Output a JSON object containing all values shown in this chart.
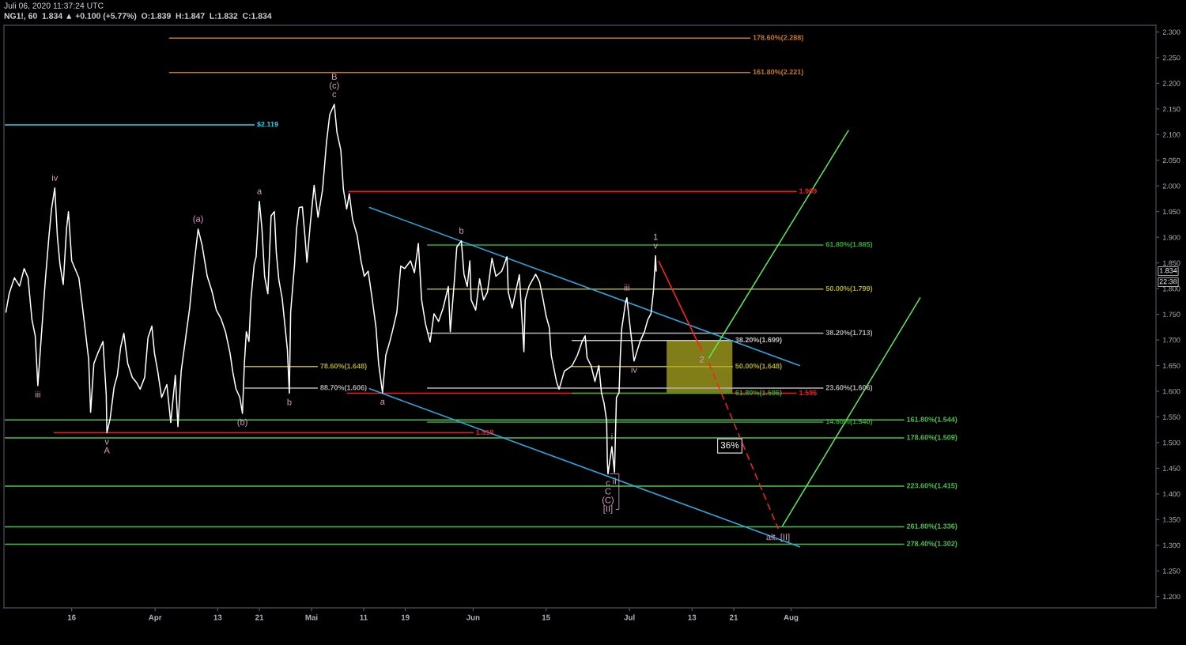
{
  "chart_data": {
    "type": "line",
    "title": "NG1!, 60  1.834 ▲ +0.100 (+5.77%)  O:1.839  H:1.847  L:1.832  C:1.834",
    "subtitle": "Juli 06, 2020 11:37:24 UTC",
    "xlim": [
      "2020-03-03",
      "2020-10-10"
    ],
    "ylim": [
      1.178,
      2.313
    ],
    "xticks": [
      {
        "value": "2020-03-16",
        "label": "16"
      },
      {
        "value": "2020-04-01",
        "label": "Apr"
      },
      {
        "value": "2020-04-13",
        "label": "13"
      },
      {
        "value": "2020-04-21",
        "label": "21"
      },
      {
        "value": "2020-05-01",
        "label": "Mai"
      },
      {
        "value": "2020-05-11",
        "label": "11"
      },
      {
        "value": "2020-05-19",
        "label": "19"
      },
      {
        "value": "2020-06-01",
        "label": "Jun"
      },
      {
        "value": "2020-06-15",
        "label": "15"
      },
      {
        "value": "2020-07-01",
        "label": "Jul"
      },
      {
        "value": "2020-07-13",
        "label": "13"
      },
      {
        "value": "2020-07-21",
        "label": "21"
      },
      {
        "value": "2020-08-01",
        "label": "Aug"
      }
    ],
    "yticks": [
      {
        "value": 1.2,
        "label": "1.200"
      },
      {
        "value": 1.25,
        "label": "1.250"
      },
      {
        "value": 1.3,
        "label": "1.300"
      },
      {
        "value": 1.35,
        "label": "1.350"
      },
      {
        "value": 1.4,
        "label": "1.400"
      },
      {
        "value": 1.45,
        "label": "1.450"
      },
      {
        "value": 1.5,
        "label": "1.500"
      },
      {
        "value": 1.55,
        "label": "1.550"
      },
      {
        "value": 1.6,
        "label": "1.600"
      },
      {
        "value": 1.65,
        "label": "1.650"
      },
      {
        "value": 1.7,
        "label": "1.700"
      },
      {
        "value": 1.75,
        "label": "1.750"
      },
      {
        "value": 1.8,
        "label": "1.800"
      },
      {
        "value": 1.85,
        "label": "1.850"
      },
      {
        "value": 1.9,
        "label": "1.900"
      },
      {
        "value": 1.95,
        "label": "1.950"
      },
      {
        "value": 2.0,
        "label": "2.000"
      },
      {
        "value": 2.05,
        "label": "2.050"
      },
      {
        "value": 2.1,
        "label": "2.100"
      },
      {
        "value": 2.15,
        "label": "2.150"
      },
      {
        "value": 2.2,
        "label": "2.200"
      },
      {
        "value": 2.25,
        "label": "2.250"
      },
      {
        "value": 2.3,
        "label": "2.300"
      }
    ],
    "series": [
      {
        "name": "178.60%(2.288)",
        "color": "#c9781f",
        "x": [
          "2020-04-03T18:00",
          "2020-07-24T03:00"
        ],
        "values": [
          2.288,
          2.288
        ]
      },
      {
        "name": "161.80%(2.221)",
        "color": "#c9781f",
        "x": [
          "2020-04-03T18:00",
          "2020-07-24T03:00"
        ],
        "values": [
          2.221,
          2.221
        ]
      },
      {
        "name": "$2.119",
        "color": "#1fd6ee",
        "x": [
          "2020-03-03T06:00",
          "2020-04-20T00:00"
        ],
        "values": [
          2.119,
          2.119
        ]
      },
      {
        "name": "1.989",
        "color": "#f01e1e",
        "x": [
          "2020-05-08T03:00",
          "2020-08-02T00:00"
        ],
        "values": [
          1.989,
          1.989
        ]
      },
      {
        "name": "61.80%(1.885)",
        "color": "#2fae2f",
        "x": [
          "2020-05-23T06:00",
          "2020-08-07T03:00"
        ],
        "values": [
          1.885,
          1.885
        ]
      },
      {
        "name": "50.00%(1.799)",
        "color": "#b3ad22",
        "x": [
          "2020-05-23T06:00",
          "2020-08-07T03:00"
        ],
        "values": [
          1.799,
          1.799
        ]
      },
      {
        "name": "38.20%(1.713)",
        "color": "#b4b4b4",
        "x": [
          "2020-05-23T06:00",
          "2020-08-07T03:00"
        ],
        "values": [
          1.713,
          1.713
        ]
      },
      {
        "name": "23.60%(1.606)",
        "color": "#b4b4b4",
        "x": [
          "2020-05-23T06:00",
          "2020-08-07T03:00"
        ],
        "values": [
          1.606,
          1.606
        ]
      },
      {
        "name": "14.60%(1.540)",
        "color": "#2fae2f",
        "x": [
          "2020-05-23T06:00",
          "2020-08-07T03:00"
        ],
        "values": [
          1.54,
          1.54
        ]
      },
      {
        "name": "161.80%(1.544)",
        "color": "#4cc44c",
        "x": [
          "2020-03-03T06:00",
          "2020-08-22T15:00"
        ],
        "values": [
          1.544,
          1.544
        ]
      },
      {
        "name": "178.60%(1.509)",
        "color": "#4cc44c",
        "x": [
          "2020-03-03T06:00",
          "2020-08-22T15:00"
        ],
        "values": [
          1.509,
          1.509
        ]
      },
      {
        "name": "223.60%(1.415)",
        "color": "#4cc44c",
        "x": [
          "2020-03-03T06:00",
          "2020-08-22T15:00"
        ],
        "values": [
          1.415,
          1.415
        ]
      },
      {
        "name": "261.80%(1.336)",
        "color": "#4cc44c",
        "x": [
          "2020-03-03T06:00",
          "2020-08-22T15:00"
        ],
        "values": [
          1.336,
          1.336
        ]
      },
      {
        "name": "278.40%(1.302)",
        "color": "#4cc44c",
        "x": [
          "2020-03-03T06:00",
          "2020-08-22T15:00"
        ],
        "values": [
          1.302,
          1.302
        ]
      },
      {
        "name": "78.60%(1.648)",
        "color": "#b3ad22",
        "x": [
          "2020-04-18T06:00",
          "2020-05-02T03:00"
        ],
        "values": [
          1.648,
          1.648
        ]
      },
      {
        "name": "88.70%(1.606)",
        "color": "#b4b4b4",
        "x": [
          "2020-04-18T06:00",
          "2020-05-02T03:00"
        ],
        "values": [
          1.606,
          1.606
        ]
      },
      {
        "name": "1.519",
        "color": "#f01e1e",
        "x": [
          "2020-03-12T15:00",
          "2020-06-01T00:00"
        ],
        "values": [
          1.519,
          1.519
        ]
      },
      {
        "name": "1.596",
        "color": "#f01e1e",
        "x": [
          "2020-05-07T21:00",
          "2020-08-02T00:00"
        ],
        "values": [
          1.596,
          1.596
        ]
      },
      {
        "name": "38.20%(1.699)",
        "color": "#c8c8c8",
        "x": [
          "2020-06-20T00:00",
          "2020-07-20T18:00"
        ],
        "values": [
          1.699,
          1.699
        ]
      },
      {
        "name": "61.80%(1.596)",
        "color": "#2fae2f",
        "x": [
          "2020-06-20T00:00",
          "2020-07-20T18:00"
        ],
        "values": [
          1.596,
          1.596
        ]
      },
      {
        "name": "50.00%(1.648)",
        "color": "#b3ad22",
        "x": [
          "2020-06-20T00:00",
          "2020-07-08T03:00",
          "2020-07-20T18:00"
        ],
        "values": [
          1.648,
          1.648,
          1.648
        ],
        "lower": [
          null,
          1.596,
          1.596
        ],
        "upper": [
          null,
          1.699,
          1.699
        ]
      },
      {
        "color": "#2aa8e0",
        "x": [
          "2020-05-12T03:00",
          "2020-08-02T15:00"
        ],
        "values": [
          1.958,
          1.65
        ]
      },
      {
        "color": "#2aa8e0",
        "x": [
          "2020-05-12T03:00",
          "2020-08-02T15:00"
        ],
        "values": [
          1.605,
          1.297
        ]
      },
      {
        "color": "#ffffff",
        "x": [
          "2020-03-03T09:00",
          "2020-03-04T00:00",
          "2020-03-05T00:00",
          "2020-03-06T00:00",
          "2020-03-06T21:00",
          "2020-03-07T15:00",
          "2020-03-08T09:00",
          "2020-03-09T00:00",
          "2020-03-09T12:00",
          "2020-03-10T03:00",
          "2020-03-10T21:00",
          "2020-03-11T15:00",
          "2020-03-12T03:00",
          "2020-03-12T18:00",
          "2020-03-13T06:00",
          "2020-03-13T18:00",
          "2020-03-14T09:00",
          "2020-03-15T00:00",
          "2020-03-15T09:00",
          "2020-03-16T00:00",
          "2020-03-16T15:00",
          "2020-03-17T09:00",
          "2020-03-18T00:00",
          "2020-03-18T15:00",
          "2020-03-19T06:00",
          "2020-03-19T15:00",
          "2020-03-20T06:00",
          "2020-03-21T00:00",
          "2020-03-22T00:00",
          "2020-03-22T15:00",
          "2020-03-22T18:00",
          "2020-03-23T09:00",
          "2020-03-24T03:00",
          "2020-03-24T18:00",
          "2020-03-25T09:00",
          "2020-03-26T00:00",
          "2020-03-26T18:00",
          "2020-03-27T15:00",
          "2020-03-28T12:00",
          "2020-03-29T03:00",
          "2020-03-30T00:00",
          "2020-03-30T15:00",
          "2020-03-31T09:00",
          "2020-03-31T21:00",
          "2020-04-01T12:00",
          "2020-04-02T06:00",
          "2020-04-03T06:00",
          "2020-04-04T00:00",
          "2020-04-04T21:00",
          "2020-04-05T09:00",
          "2020-04-06T00:00",
          "2020-04-06T18:00",
          "2020-04-07T15:00",
          "2020-04-08T09:00",
          "2020-04-09T06:00",
          "2020-04-10T00:00",
          "2020-04-11T00:00",
          "2020-04-11T21:00",
          "2020-04-12T18:00",
          "2020-04-13T15:00",
          "2020-04-14T12:00",
          "2020-04-15T09:00",
          "2020-04-15T21:00",
          "2020-04-16T12:00",
          "2020-04-17T06:00",
          "2020-04-17T18:00",
          "2020-04-18T03:00",
          "2020-04-18T12:00",
          "2020-04-19T00:00",
          "2020-04-19T09:00",
          "2020-04-20T00:00",
          "2020-04-20T09:00",
          "2020-04-21T00:00",
          "2020-04-21T12:00",
          "2020-04-22T00:00",
          "2020-04-22T15:00",
          "2020-04-23T06:00",
          "2020-04-23T21:00",
          "2020-04-24T06:00",
          "2020-04-24T18:00",
          "2020-04-25T09:00",
          "2020-04-25T21:00",
          "2020-04-26T09:00",
          "2020-04-26T18:00",
          "2020-04-27T00:00",
          "2020-04-27T18:00",
          "2020-04-28T03:00",
          "2020-04-28T15:00",
          "2020-04-29T06:00",
          "2020-04-29T18:00",
          "2020-04-30T03:00",
          "2020-04-30T18:00",
          "2020-05-01T12:00",
          "2020-05-02T06:00",
          "2020-05-03T03:00",
          "2020-05-03T21:00",
          "2020-05-04T12:00",
          "2020-05-05T09:00",
          "2020-05-05T21:00",
          "2020-05-06T15:00",
          "2020-05-07T03:00",
          "2020-05-07T18:00",
          "2020-05-08T06:00",
          "2020-05-08T21:00",
          "2020-05-09T18:00",
          "2020-05-10T12:00",
          "2020-05-11T03:00",
          "2020-05-11T21:00",
          "2020-05-12T15:00",
          "2020-05-13T09:00",
          "2020-05-13T21:00",
          "2020-05-14T15:00",
          "2020-05-15T06:00",
          "2020-05-16T00:00",
          "2020-05-16T12:00",
          "2020-05-17T09:00",
          "2020-05-18T03:00",
          "2020-05-18T21:00",
          "2020-05-20T00:00",
          "2020-05-20T18:00",
          "2020-05-21T12:00",
          "2020-05-22T03:00",
          "2020-05-22T21:00",
          "2020-05-23T18:00",
          "2020-05-24T12:00",
          "2020-05-25T09:00",
          "2020-05-26T06:00",
          "2020-05-27T06:00",
          "2020-05-27T15:00",
          "2020-05-28T09:00",
          "2020-05-28T21:00",
          "2020-05-29T18:00",
          "2020-05-30T06:00",
          "2020-05-30T21:00",
          "2020-05-31T09:00",
          "2020-05-31T15:00",
          "2020-06-01T12:00",
          "2020-06-02T06:00",
          "2020-06-03T00:00",
          "2020-06-03T18:00",
          "2020-06-04T15:00",
          "2020-06-05T09:00",
          "2020-06-06T12:00",
          "2020-06-07T12:00",
          "2020-06-07T18:00",
          "2020-06-08T12:00",
          "2020-06-09T21:00",
          "2020-06-10T18:00",
          "2020-06-11T00:00",
          "2020-06-11T18:00",
          "2020-06-13T00:00",
          "2020-06-13T18:00",
          "2020-06-14T09:00",
          "2020-06-15T00:00",
          "2020-06-15T15:00",
          "2020-06-16T00:00",
          "2020-06-17T00:00",
          "2020-06-17T12:00",
          "2020-06-18T12:00",
          "2020-06-20T00:00",
          "2020-06-21T00:00",
          "2020-06-21T21:00",
          "2020-06-22T12:00",
          "2020-06-22T21:00",
          "2020-06-23T15:00",
          "2020-06-24T09:00",
          "2020-06-25T03:00",
          "2020-06-25T15:00",
          "2020-06-26T03:00",
          "2020-06-26T15:00",
          "2020-06-26T18:00",
          "2020-06-26T21:00",
          "2020-06-27T15:00",
          "2020-06-28T03:00",
          "2020-06-28T12:00",
          "2020-06-29T00:00",
          "2020-06-29T06:00",
          "2020-06-29T12:00",
          "2020-06-30T06:00",
          "2020-06-30T12:00",
          "2020-07-01T00:00",
          "2020-07-01T21:00",
          "2020-07-03T00:00",
          "2020-07-03T21:00",
          "2020-07-04T12:00",
          "2020-07-05T03:00",
          "2020-07-05T15:00",
          "2020-07-06T00:00",
          "2020-07-06T03:00"
        ],
        "values": [
          1.754,
          1.79,
          1.821,
          1.805,
          1.839,
          1.821,
          1.739,
          1.708,
          1.611,
          1.701,
          1.808,
          1.901,
          1.955,
          1.996,
          1.901,
          1.847,
          1.808,
          1.916,
          1.95,
          1.854,
          1.839,
          1.821,
          1.77,
          1.716,
          1.662,
          1.559,
          1.654,
          1.674,
          1.697,
          1.593,
          1.519,
          1.547,
          1.608,
          1.631,
          1.685,
          1.713,
          1.654,
          1.627,
          1.616,
          1.604,
          1.627,
          1.704,
          1.727,
          1.674,
          1.639,
          1.588,
          1.613,
          1.539,
          1.631,
          1.531,
          1.639,
          1.696,
          1.762,
          1.839,
          1.916,
          1.885,
          1.824,
          1.796,
          1.758,
          1.742,
          1.716,
          1.674,
          1.639,
          1.605,
          1.588,
          1.557,
          1.654,
          1.716,
          1.697,
          1.778,
          1.847,
          1.862,
          1.97,
          1.916,
          1.824,
          1.79,
          1.942,
          1.95,
          1.87,
          1.816,
          1.781,
          1.731,
          1.681,
          1.596,
          1.754,
          1.847,
          1.916,
          1.958,
          1.959,
          1.901,
          1.851,
          1.924,
          2.001,
          1.939,
          1.993,
          2.085,
          2.139,
          2.159,
          2.105,
          2.07,
          1.993,
          1.955,
          1.985,
          1.935,
          1.904,
          1.854,
          1.824,
          1.834,
          1.781,
          1.724,
          1.654,
          1.597,
          1.67,
          1.696,
          1.716,
          1.754,
          1.844,
          1.839,
          1.854,
          1.831,
          1.888,
          1.778,
          1.731,
          1.696,
          1.751,
          1.736,
          1.762,
          1.804,
          1.716,
          1.811,
          1.881,
          1.893,
          1.828,
          1.804,
          1.854,
          1.778,
          1.758,
          1.819,
          1.778,
          1.793,
          1.859,
          1.824,
          1.834,
          1.862,
          1.793,
          1.762,
          1.827,
          1.677,
          1.778,
          1.805,
          1.828,
          1.813,
          1.782,
          1.747,
          1.724,
          1.67,
          1.619,
          1.604,
          1.639,
          1.65,
          1.67,
          1.696,
          1.708,
          1.665,
          1.65,
          1.619,
          1.65,
          1.597,
          1.577,
          1.542,
          1.465,
          1.439,
          1.492,
          1.442,
          1.588,
          1.597,
          1.67,
          1.721,
          1.773,
          1.782,
          1.736,
          1.659,
          1.696,
          1.716,
          1.739,
          1.751,
          1.798,
          1.864,
          1.834
        ]
      },
      {
        "color": "#ff2020",
        "x": [
          "2020-07-06T15:00",
          "2020-07-14T21:00"
        ],
        "values": [
          1.853,
          1.679
        ]
      },
      {
        "name": "36%",
        "color": "#ff2020",
        "line_style": "dashed",
        "x": [
          "2020-07-16T06:00",
          "2020-07-29T12:00"
        ],
        "values": [
          1.654,
          1.333
        ]
      },
      {
        "color": "#58e858",
        "x": [
          "2020-07-16T06:00",
          "2020-08-12T00:00"
        ],
        "values": [
          1.665,
          2.108
        ]
      },
      {
        "color": "#58e858",
        "x": [
          "2020-07-30T09:00",
          "2020-08-25T18:00"
        ],
        "values": [
          1.338,
          1.782
        ]
      }
    ],
    "annotations": [
      {
        "text": "iii",
        "x": "2020-03-09T12:00",
        "y": 1.611
      },
      {
        "text": "iv",
        "x": "2020-03-12T18:00",
        "y": 1.996
      },
      {
        "text": "v",
        "x": "2020-03-22T18:00",
        "y": 1.519
      },
      {
        "text": "A",
        "x": "2020-03-22T18:00",
        "y": 1.519
      },
      {
        "text": "(a)",
        "x": "2020-04-09T06:00",
        "y": 1.916
      },
      {
        "text": "(b)",
        "x": "2020-04-17T18:00",
        "y": 1.557
      },
      {
        "text": "a",
        "x": "2020-04-21T00:00",
        "y": 1.97
      },
      {
        "text": "b",
        "x": "2020-04-26T18:00",
        "y": 1.596
      },
      {
        "text": "c",
        "x": "2020-05-05T09:00",
        "y": 2.159
      },
      {
        "text": "(c)",
        "x": "2020-05-05T09:00",
        "y": 2.159
      },
      {
        "text": "B",
        "x": "2020-05-05T09:00",
        "y": 2.159
      },
      {
        "text": "a",
        "x": "2020-05-14T15:00",
        "y": 1.597
      },
      {
        "text": "b",
        "x": "2020-05-29T18:00",
        "y": 1.893
      },
      {
        "text": "c",
        "x": "2020-06-26T21:00",
        "y": 1.439
      },
      {
        "text": "C",
        "x": "2020-06-26T21:00",
        "y": 1.439
      },
      {
        "text": "(C)",
        "x": "2020-06-26T21:00",
        "y": 1.439
      },
      {
        "text": "[II]",
        "x": "2020-06-26T21:00",
        "y": 1.439
      },
      {
        "text": "i",
        "x": "2020-06-27T15:00",
        "y": 1.492
      },
      {
        "text": "ii",
        "x": "2020-06-28T03:00",
        "y": 1.442
      },
      {
        "text": "iii",
        "x": "2020-06-30T12:00",
        "y": 1.782
      },
      {
        "text": "iv",
        "x": "2020-07-01T21:00",
        "y": 1.659
      },
      {
        "text": "v",
        "x": "2020-07-06T00:00",
        "y": 1.864
      },
      {
        "text": "1",
        "x": "2020-07-06T00:00",
        "y": 1.864
      },
      {
        "text": "2",
        "x": "2020-07-14T21:00",
        "y": 1.679
      },
      {
        "text": "alt. [II]",
        "x": "2020-07-29T12:00",
        "y": 1.333
      },
      {
        "text": "1.834",
        "y": 1.834
      },
      "22:38"
    ]
  }
}
